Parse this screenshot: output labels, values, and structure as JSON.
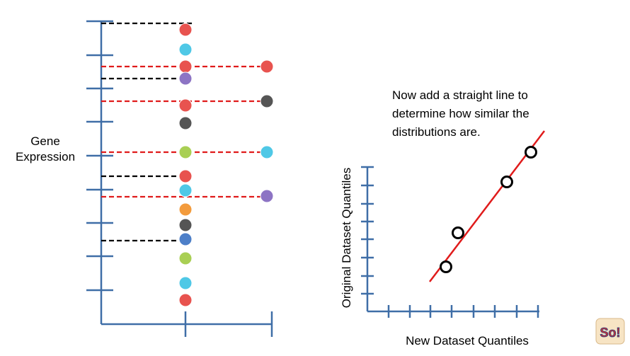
{
  "left_axis": {
    "label_line1": "Gene",
    "label_line2": "Expression"
  },
  "annotation": {
    "line1": "Now add a straight line to",
    "line2": "determine how similar the",
    "line3": "distributions are."
  },
  "qq_plot": {
    "xlabel": "New Dataset Quantiles",
    "ylabel": "Original Dataset Quantiles"
  },
  "colors": {
    "axis": "#3f6ea7",
    "red": "#e8534f",
    "cyan": "#4fc8e6",
    "purple": "#8d74c4",
    "gray": "#555555",
    "green": "#a9cf54",
    "orange": "#f39b3c",
    "blue": "#4d7fc8",
    "fit_line": "#e01b1b",
    "dash_red": "#e01b1b",
    "dash_black": "#000000"
  },
  "logo": {
    "text": "So!"
  }
}
